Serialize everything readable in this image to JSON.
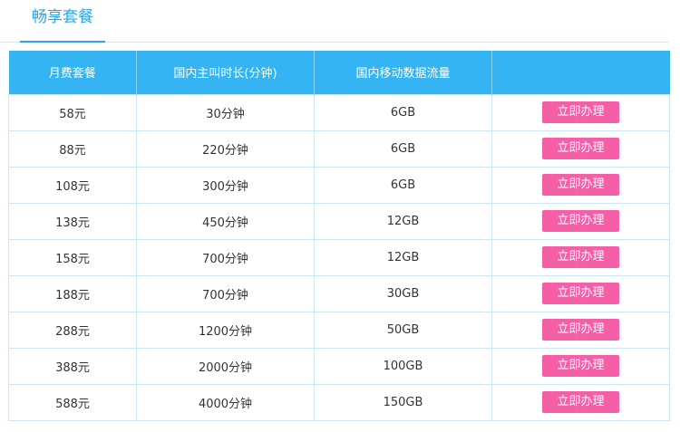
{
  "tab": {
    "title": "畅享套餐"
  },
  "table": {
    "headers": [
      "月费套餐",
      "国内主叫时长(分钟)",
      "国内移动数据流量",
      ""
    ],
    "action_label": "立即办理",
    "rows": [
      {
        "price": "58元",
        "minutes": "30分钟",
        "data": "6GB"
      },
      {
        "price": "88元",
        "minutes": "220分钟",
        "data": "6GB"
      },
      {
        "price": "108元",
        "minutes": "300分钟",
        "data": "6GB"
      },
      {
        "price": "138元",
        "minutes": "450分钟",
        "data": "12GB"
      },
      {
        "price": "158元",
        "minutes": "700分钟",
        "data": "12GB"
      },
      {
        "price": "188元",
        "minutes": "700分钟",
        "data": "30GB"
      },
      {
        "price": "288元",
        "minutes": "1200分钟",
        "data": "50GB"
      },
      {
        "price": "388元",
        "minutes": "2000分钟",
        "data": "100GB"
      },
      {
        "price": "588元",
        "minutes": "4000分钟",
        "data": "150GB"
      }
    ]
  },
  "colors": {
    "accent": "#2aa6e8",
    "header_bg": "#35b4f3",
    "price": "#e0427f",
    "button": "#f45fa8"
  }
}
